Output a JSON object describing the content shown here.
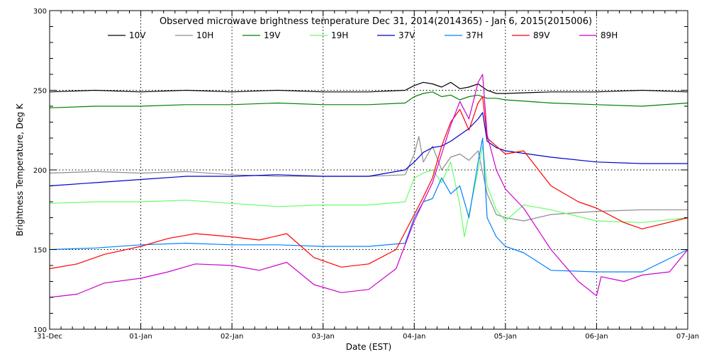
{
  "chart_data": {
    "type": "line",
    "title": "Observed microwave brightness temperature Dec 31, 2014(2014365) - Jan  6, 2015(2015006)",
    "xlabel": "Date (EST)",
    "ylabel": "Brightness Temperature, Deg K",
    "x_unit": "days",
    "xlim": [
      0,
      7
    ],
    "ylim": [
      100,
      300
    ],
    "x_ticks": [
      {
        "value": 0,
        "label": "31-Dec"
      },
      {
        "value": 1,
        "label": "01-Jan"
      },
      {
        "value": 2,
        "label": "02-Jan"
      },
      {
        "value": 3,
        "label": "03-Jan"
      },
      {
        "value": 4,
        "label": "04-Jan"
      },
      {
        "value": 5,
        "label": "05-Jan"
      },
      {
        "value": 6,
        "label": "06-Jan"
      },
      {
        "value": 7,
        "label": "07-Jan"
      }
    ],
    "y_ticks": [
      {
        "value": 100,
        "label": "100"
      },
      {
        "value": 150,
        "label": "150"
      },
      {
        "value": 200,
        "label": "200"
      },
      {
        "value": 250,
        "label": "250"
      },
      {
        "value": 300,
        "label": "300"
      }
    ],
    "grid": {
      "x": "dotted",
      "y": "dotted",
      "y_values": [
        150,
        200,
        250
      ]
    },
    "legend": "top",
    "series": [
      {
        "name": "10V",
        "color": "#000000",
        "x": [
          0,
          0.5,
          1,
          1.5,
          2,
          2.5,
          3,
          3.5,
          3.9,
          4,
          4.1,
          4.2,
          4.3,
          4.4,
          4.5,
          4.6,
          4.7,
          4.8,
          4.9,
          5,
          5.5,
          6,
          6.5,
          7
        ],
        "y": [
          249,
          250,
          249,
          250,
          249,
          250,
          249,
          249,
          250,
          253,
          255,
          254,
          252,
          255,
          251,
          252,
          254,
          250,
          248,
          248,
          249,
          249,
          250,
          249
        ]
      },
      {
        "name": "10H",
        "color": "#8c8c8c",
        "x": [
          0,
          0.5,
          1,
          1.5,
          2,
          2.5,
          3,
          3.5,
          3.9,
          4,
          4.05,
          4.1,
          4.2,
          4.3,
          4.4,
          4.5,
          4.6,
          4.7,
          4.8,
          4.9,
          5,
          5.2,
          5.5,
          6,
          6.5,
          7
        ],
        "y": [
          198,
          199,
          198,
          199,
          197,
          196,
          196,
          196,
          197,
          210,
          221,
          205,
          215,
          200,
          208,
          210,
          206,
          212,
          185,
          172,
          170,
          168,
          172,
          174,
          175,
          175
        ]
      },
      {
        "name": "19V",
        "color": "#008000",
        "x": [
          0,
          0.5,
          1,
          1.5,
          2,
          2.5,
          3,
          3.5,
          3.9,
          4,
          4.1,
          4.2,
          4.3,
          4.4,
          4.5,
          4.6,
          4.7,
          4.8,
          4.9,
          5,
          5.5,
          6,
          6.5,
          7
        ],
        "y": [
          239,
          240,
          240,
          241,
          241,
          242,
          241,
          241,
          242,
          246,
          248,
          249,
          246,
          247,
          244,
          246,
          247,
          245,
          245,
          244,
          242,
          241,
          240,
          242
        ]
      },
      {
        "name": "19H",
        "color": "#66ff66",
        "x": [
          0,
          0.5,
          1,
          1.5,
          2,
          2.5,
          3,
          3.5,
          3.9,
          4,
          4.1,
          4.2,
          4.3,
          4.4,
          4.5,
          4.55,
          4.6,
          4.7,
          4.75,
          4.8,
          4.9,
          5,
          5.2,
          5.5,
          6,
          6.5,
          7
        ],
        "y": [
          179,
          180,
          180,
          181,
          179,
          177,
          178,
          178,
          180,
          195,
          198,
          200,
          192,
          205,
          178,
          158,
          172,
          200,
          215,
          190,
          175,
          168,
          178,
          175,
          168,
          167,
          170
        ]
      },
      {
        "name": "37V",
        "color": "#0000cc",
        "x": [
          0,
          0.5,
          1,
          1.5,
          2,
          2.5,
          3,
          3.5,
          3.9,
          4,
          4.1,
          4.2,
          4.3,
          4.4,
          4.5,
          4.6,
          4.7,
          4.75,
          4.8,
          4.9,
          5,
          5.5,
          6,
          6.5,
          7
        ],
        "y": [
          190,
          192,
          194,
          196,
          196,
          197,
          196,
          196,
          200,
          205,
          211,
          214,
          215,
          218,
          222,
          226,
          232,
          236,
          218,
          214,
          212,
          208,
          205,
          204,
          204
        ]
      },
      {
        "name": "37H",
        "color": "#0080ff",
        "x": [
          0,
          0.5,
          1,
          1.5,
          2,
          2.5,
          3,
          3.5,
          3.9,
          4,
          4.1,
          4.2,
          4.3,
          4.4,
          4.5,
          4.6,
          4.7,
          4.75,
          4.8,
          4.9,
          5,
          5.2,
          5.5,
          6,
          6.5,
          7
        ],
        "y": [
          150,
          151,
          153,
          154,
          153,
          153,
          152,
          152,
          154,
          170,
          180,
          182,
          195,
          185,
          190,
          170,
          205,
          220,
          170,
          158,
          152,
          148,
          137,
          136,
          136,
          150
        ]
      },
      {
        "name": "89V",
        "color": "#ff0000",
        "x": [
          0,
          0.3,
          0.6,
          1,
          1.3,
          1.6,
          2,
          2.3,
          2.6,
          2.9,
          3.2,
          3.5,
          3.8,
          4,
          4.1,
          4.2,
          4.3,
          4.4,
          4.5,
          4.6,
          4.7,
          4.75,
          4.8,
          4.9,
          5,
          5.2,
          5.5,
          5.8,
          6,
          6.3,
          6.5,
          7
        ],
        "y": [
          138,
          141,
          147,
          152,
          157,
          160,
          158,
          156,
          160,
          145,
          139,
          141,
          150,
          172,
          183,
          195,
          215,
          230,
          238,
          225,
          242,
          246,
          220,
          215,
          210,
          212,
          190,
          180,
          176,
          167,
          163,
          170
        ]
      },
      {
        "name": "89H",
        "color": "#cc00cc",
        "x": [
          0,
          0.3,
          0.6,
          1,
          1.3,
          1.6,
          2,
          2.3,
          2.6,
          2.9,
          3.2,
          3.5,
          3.8,
          4,
          4.1,
          4.2,
          4.3,
          4.4,
          4.5,
          4.6,
          4.7,
          4.75,
          4.8,
          4.9,
          5,
          5.2,
          5.5,
          5.8,
          6,
          6.05,
          6.3,
          6.5,
          6.8,
          7
        ],
        "y": [
          120,
          122,
          129,
          132,
          136,
          141,
          140,
          137,
          142,
          128,
          123,
          125,
          138,
          168,
          180,
          192,
          210,
          228,
          243,
          232,
          255,
          260,
          222,
          200,
          188,
          176,
          150,
          130,
          121,
          133,
          130,
          134,
          136,
          150
        ]
      }
    ]
  }
}
